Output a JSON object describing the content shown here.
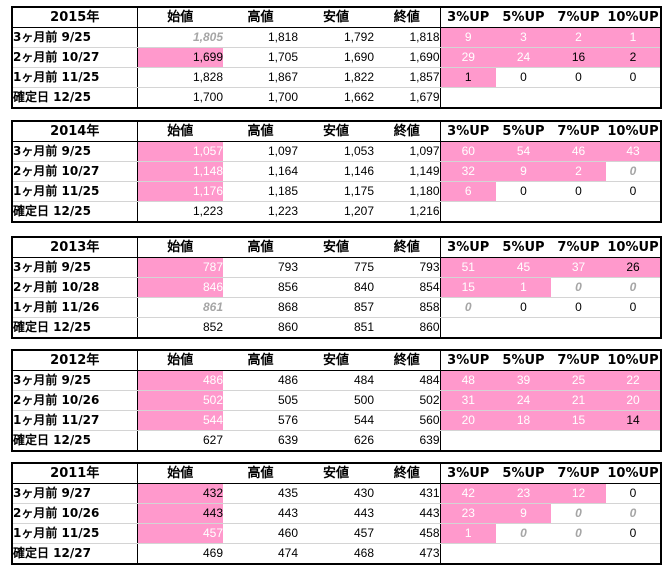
{
  "headers": [
    "始値",
    "高値",
    "安値",
    "終値",
    "3%UP",
    "5%UP",
    "7%UP",
    "10%UP"
  ],
  "blocks": [
    {
      "year": "2015年",
      "rows": [
        {
          "label": "3ヶ月前  9/25",
          "values": [
            "1,805",
            "1,818",
            "1,792",
            "1,818",
            "9",
            "3",
            "2",
            "1"
          ],
          "styles": [
            "gray",
            "",
            "",
            "",
            "pink",
            "pink",
            "pink",
            "pink"
          ]
        },
        {
          "label": "2ヶ月前  10/27",
          "values": [
            "1,699",
            "1,705",
            "1,690",
            "1,690",
            "29",
            "24",
            "16",
            "2"
          ],
          "styles": [
            "pinkdark",
            "",
            "",
            "",
            "pink",
            "pink",
            "pinkdark",
            "pinkdark"
          ]
        },
        {
          "label": "1ヶ月前  11/25",
          "values": [
            "1,828",
            "1,867",
            "1,822",
            "1,857",
            "1",
            "0",
            "0",
            "0"
          ],
          "styles": [
            "",
            "",
            "",
            "",
            "pinkdark",
            "",
            "",
            ""
          ]
        },
        {
          "label": "確定日    12/25",
          "values": [
            "1,700",
            "1,700",
            "1,662",
            "1,679",
            "",
            "",
            "",
            ""
          ],
          "styles": [
            "",
            "",
            "",
            "",
            "",
            "",
            "",
            ""
          ]
        }
      ]
    },
    {
      "year": "2014年",
      "rows": [
        {
          "label": "3ヶ月前  9/25",
          "values": [
            "1,057",
            "1,097",
            "1,053",
            "1,097",
            "60",
            "54",
            "46",
            "43"
          ],
          "styles": [
            "pink",
            "",
            "",
            "",
            "pink",
            "pink",
            "pink",
            "pink"
          ]
        },
        {
          "label": "2ヶ月前  10/27",
          "values": [
            "1,148",
            "1,164",
            "1,146",
            "1,149",
            "32",
            "9",
            "2",
            "0"
          ],
          "styles": [
            "pink",
            "",
            "",
            "",
            "pink",
            "pink",
            "pink",
            "gray"
          ]
        },
        {
          "label": "1ヶ月前  11/25",
          "values": [
            "1,176",
            "1,185",
            "1,175",
            "1,180",
            "6",
            "0",
            "0",
            "0"
          ],
          "styles": [
            "pink",
            "",
            "",
            "",
            "pink",
            "",
            "",
            ""
          ]
        },
        {
          "label": "確定日    12/25",
          "values": [
            "1,223",
            "1,223",
            "1,207",
            "1,216",
            "",
            "",
            "",
            ""
          ],
          "styles": [
            "",
            "",
            "",
            "",
            "",
            "",
            "",
            ""
          ]
        }
      ]
    },
    {
      "year": "2013年",
      "rows": [
        {
          "label": "3ヶ月前  9/25",
          "values": [
            "787",
            "793",
            "775",
            "793",
            "51",
            "45",
            "37",
            "26"
          ],
          "styles": [
            "pink",
            "",
            "",
            "",
            "pink",
            "pink",
            "pink",
            "pinkdark"
          ]
        },
        {
          "label": "2ヶ月前  10/28",
          "values": [
            "846",
            "856",
            "840",
            "854",
            "15",
            "1",
            "0",
            "0"
          ],
          "styles": [
            "pink",
            "",
            "",
            "",
            "pink",
            "pink",
            "gray",
            "gray"
          ]
        },
        {
          "label": "1ヶ月前  11/26",
          "values": [
            "861",
            "868",
            "857",
            "858",
            "0",
            "0",
            "0",
            "0"
          ],
          "styles": [
            "gray",
            "",
            "",
            "",
            "gray",
            "",
            "",
            ""
          ]
        },
        {
          "label": "確定日    12/25",
          "values": [
            "852",
            "860",
            "851",
            "860",
            "",
            "",
            "",
            ""
          ],
          "styles": [
            "",
            "",
            "",
            "",
            "",
            "",
            "",
            ""
          ]
        }
      ]
    },
    {
      "year": "2012年",
      "rows": [
        {
          "label": "3ヶ月前  9/25",
          "values": [
            "486",
            "486",
            "484",
            "484",
            "48",
            "39",
            "25",
            "22"
          ],
          "styles": [
            "pink",
            "",
            "",
            "",
            "pink",
            "pink",
            "pink",
            "pink"
          ]
        },
        {
          "label": "2ヶ月前  10/26",
          "values": [
            "502",
            "505",
            "500",
            "502",
            "31",
            "24",
            "21",
            "20"
          ],
          "styles": [
            "pink",
            "",
            "",
            "",
            "pink",
            "pink",
            "pink",
            "pink"
          ]
        },
        {
          "label": "1ヶ月前  11/27",
          "values": [
            "544",
            "576",
            "544",
            "560",
            "20",
            "18",
            "15",
            "14"
          ],
          "styles": [
            "pink",
            "",
            "",
            "",
            "pink",
            "pink",
            "pink",
            "pinkdark"
          ]
        },
        {
          "label": "確定日    12/25",
          "values": [
            "627",
            "639",
            "626",
            "639",
            "",
            "",
            "",
            ""
          ],
          "styles": [
            "",
            "",
            "",
            "",
            "",
            "",
            "",
            ""
          ]
        }
      ]
    },
    {
      "year": "2011年",
      "rows": [
        {
          "label": "3ヶ月前  9/27",
          "values": [
            "432",
            "435",
            "430",
            "431",
            "42",
            "23",
            "12",
            "0"
          ],
          "styles": [
            "pinkdark",
            "",
            "",
            "",
            "pink",
            "pink",
            "pink",
            ""
          ]
        },
        {
          "label": "2ヶ月前  10/26",
          "values": [
            "443",
            "443",
            "443",
            "443",
            "23",
            "9",
            "0",
            "0"
          ],
          "styles": [
            "pinkdark",
            "",
            "",
            "",
            "pink",
            "pink",
            "gray",
            "gray"
          ]
        },
        {
          "label": "1ヶ月前  11/25",
          "values": [
            "457",
            "460",
            "457",
            "458",
            "1",
            "0",
            "0",
            "0"
          ],
          "styles": [
            "pink",
            "",
            "",
            "",
            "pink",
            "gray",
            "gray",
            ""
          ]
        },
        {
          "label": "確定日    12/27",
          "values": [
            "469",
            "474",
            "468",
            "473",
            "",
            "",
            "",
            ""
          ],
          "styles": [
            "",
            "",
            "",
            "",
            "",
            "",
            "",
            ""
          ]
        }
      ]
    }
  ]
}
